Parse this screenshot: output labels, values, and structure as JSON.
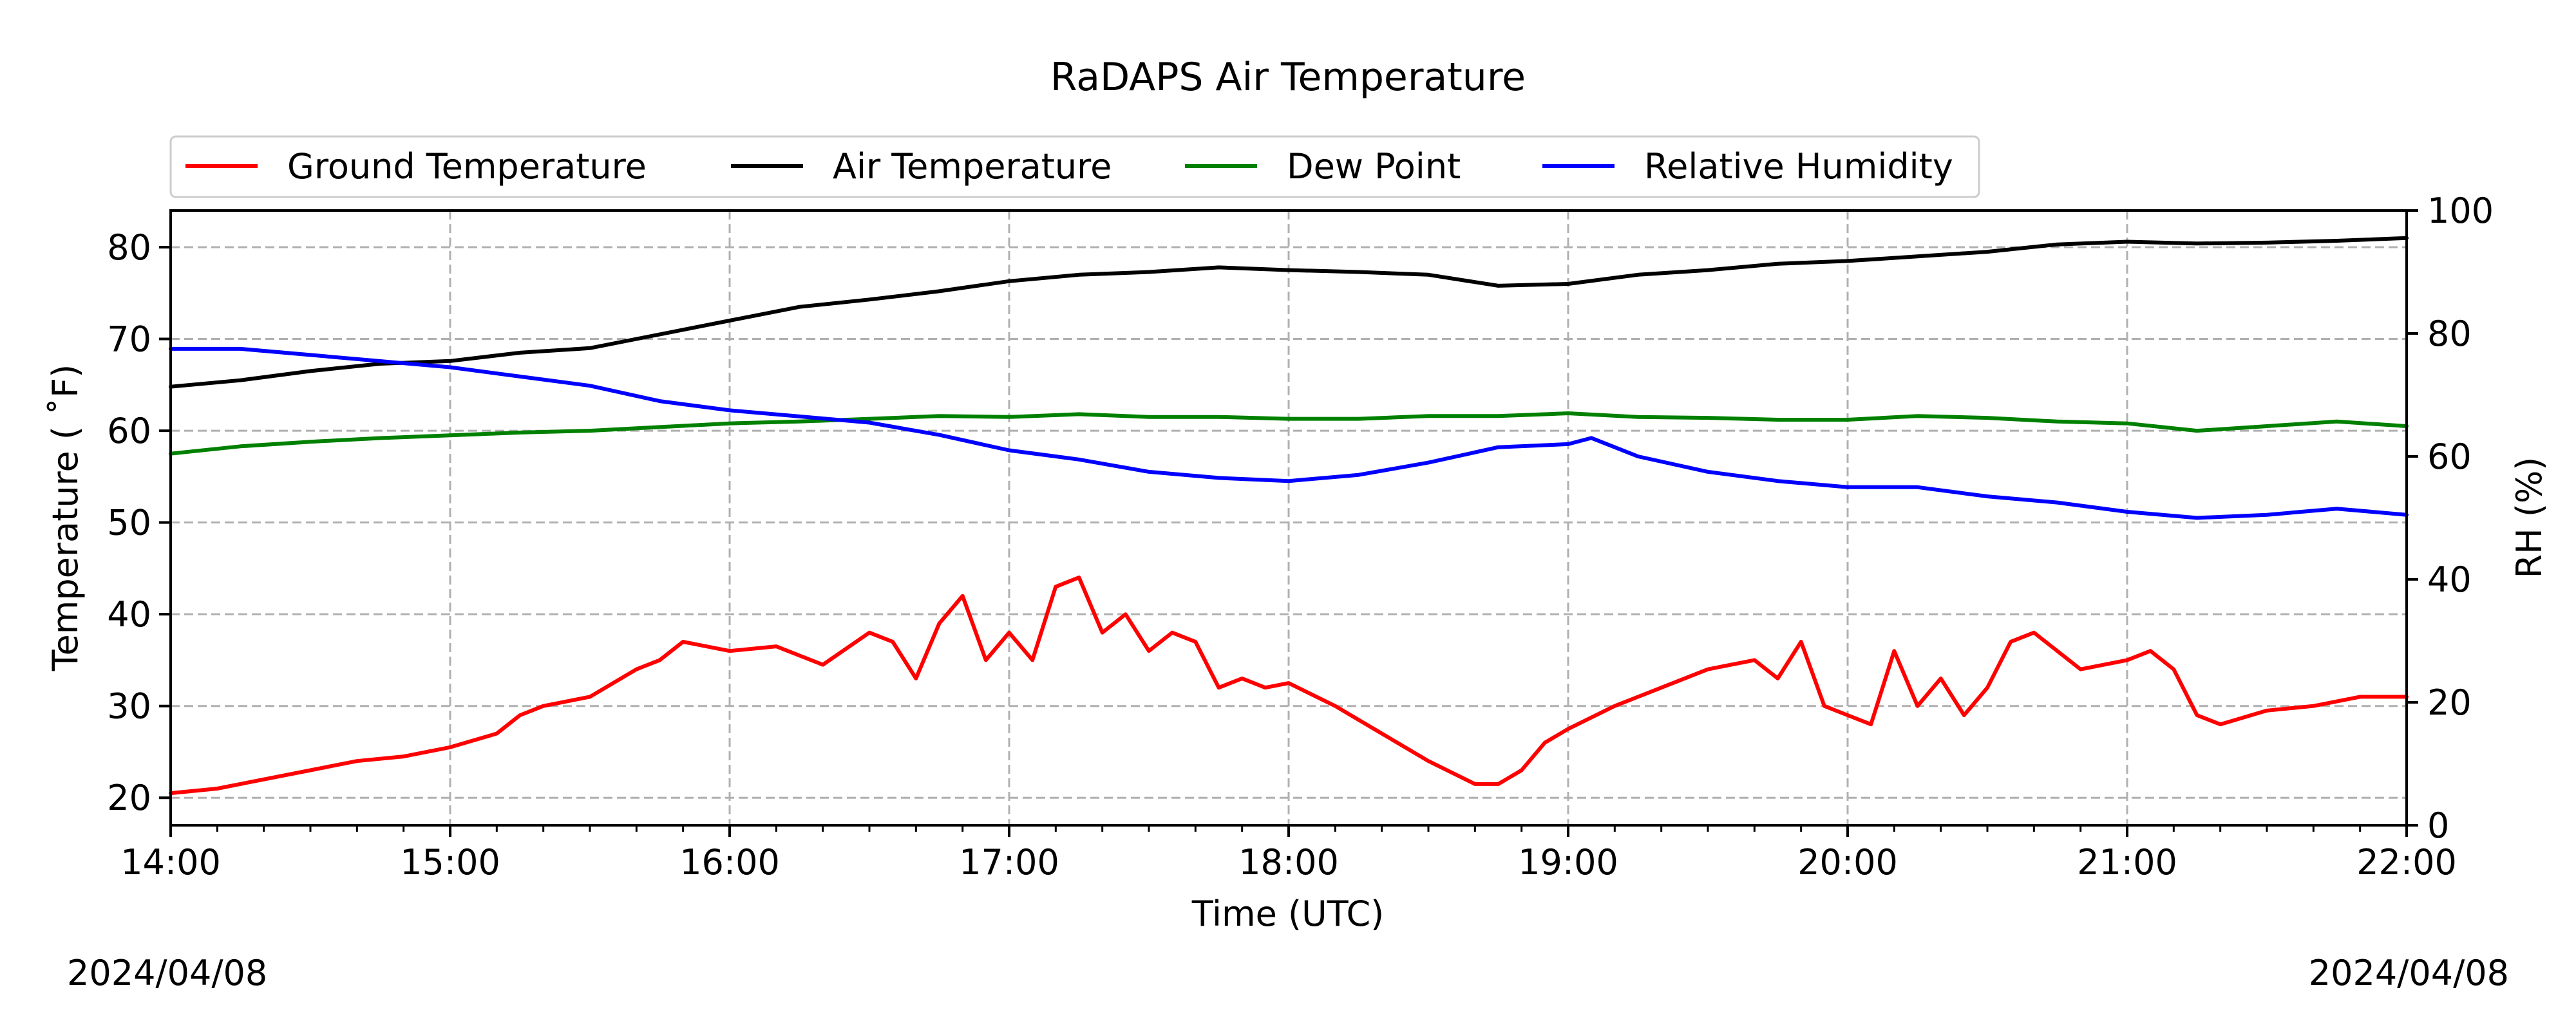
{
  "chart_data": {
    "type": "line",
    "title": "RaDAPS Air Temperature",
    "xlabel": "Time (UTC)",
    "ylabel": "Temperature ($^\\circ$F)",
    "ylabel_left_display": "Temperature ( ˚F)",
    "ylabel_right": "RH (%)",
    "xlim": [
      "14:00",
      "22:00"
    ],
    "ylim": [
      17,
      84
    ],
    "ylim_right": [
      0,
      100
    ],
    "x_ticks": [
      "14:00",
      "15:00",
      "16:00",
      "17:00",
      "18:00",
      "19:00",
      "20:00",
      "21:00",
      "22:00"
    ],
    "y_ticks": [
      20,
      30,
      40,
      50,
      60,
      70,
      80
    ],
    "y_ticks_right": [
      0,
      20,
      40,
      60,
      80,
      100
    ],
    "grid": true,
    "legend_position": "top",
    "date_left": "2024/04/08",
    "date_right": "2024/04/08",
    "series": [
      {
        "name": "Ground Temperature",
        "axis": "left",
        "color": "#ff0000",
        "x": [
          "14:00",
          "14:10",
          "14:20",
          "14:30",
          "14:40",
          "14:50",
          "15:00",
          "15:10",
          "15:15",
          "15:20",
          "15:30",
          "15:40",
          "15:45",
          "15:50",
          "16:00",
          "16:10",
          "16:20",
          "16:30",
          "16:35",
          "16:40",
          "16:45",
          "16:50",
          "16:55",
          "17:00",
          "17:05",
          "17:10",
          "17:15",
          "17:20",
          "17:25",
          "17:30",
          "17:35",
          "17:40",
          "17:45",
          "17:50",
          "17:55",
          "18:00",
          "18:10",
          "18:20",
          "18:30",
          "18:40",
          "18:45",
          "18:50",
          "18:55",
          "19:00",
          "19:10",
          "19:20",
          "19:30",
          "19:40",
          "19:45",
          "19:50",
          "19:55",
          "20:00",
          "20:05",
          "20:10",
          "20:15",
          "20:20",
          "20:25",
          "20:30",
          "20:35",
          "20:40",
          "20:45",
          "20:50",
          "21:00",
          "21:05",
          "21:10",
          "21:15",
          "21:20",
          "21:30",
          "21:40",
          "21:50",
          "22:00"
        ],
        "values": [
          20.5,
          21,
          22,
          23,
          24,
          24.5,
          25.5,
          27,
          29,
          30,
          31,
          34,
          35,
          37,
          36,
          36.5,
          34.5,
          38,
          37,
          33,
          39,
          42,
          35,
          38,
          35,
          43,
          44,
          38,
          40,
          36,
          38,
          37,
          32,
          33,
          32,
          32.5,
          30,
          27,
          24,
          21.5,
          21.5,
          23,
          26,
          27.5,
          30,
          32,
          34,
          35,
          33,
          37,
          30,
          29,
          28,
          36,
          30,
          33,
          29,
          32,
          37,
          38,
          36,
          34,
          35,
          36,
          34,
          29,
          28,
          29.5,
          30,
          31,
          31
        ]
      },
      {
        "name": "Air Temperature",
        "axis": "left",
        "color": "#000000",
        "x": [
          "14:00",
          "14:15",
          "14:30",
          "14:45",
          "15:00",
          "15:15",
          "15:30",
          "15:45",
          "16:00",
          "16:15",
          "16:30",
          "16:45",
          "17:00",
          "17:15",
          "17:30",
          "17:45",
          "18:00",
          "18:15",
          "18:30",
          "18:45",
          "19:00",
          "19:15",
          "19:30",
          "19:45",
          "20:00",
          "20:15",
          "20:30",
          "20:45",
          "21:00",
          "21:15",
          "21:30",
          "21:45",
          "22:00"
        ],
        "values": [
          64.8,
          65.5,
          66.5,
          67.3,
          67.6,
          68.5,
          69,
          70.5,
          72,
          73.5,
          74.3,
          75.2,
          76.3,
          77,
          77.3,
          77.8,
          77.5,
          77.3,
          77,
          75.8,
          76,
          77,
          77.5,
          78.2,
          78.5,
          79,
          79.5,
          80.3,
          80.6,
          80.4,
          80.5,
          80.7,
          81
        ]
      },
      {
        "name": "Dew Point",
        "axis": "left",
        "color": "#008000",
        "x": [
          "14:00",
          "14:15",
          "14:30",
          "14:45",
          "15:00",
          "15:15",
          "15:30",
          "15:45",
          "16:00",
          "16:15",
          "16:30",
          "16:45",
          "17:00",
          "17:15",
          "17:30",
          "17:45",
          "18:00",
          "18:15",
          "18:30",
          "18:45",
          "19:00",
          "19:15",
          "19:30",
          "19:45",
          "20:00",
          "20:15",
          "20:30",
          "20:45",
          "21:00",
          "21:15",
          "21:30",
          "21:45",
          "22:00"
        ],
        "values": [
          57.5,
          58.3,
          58.8,
          59.2,
          59.5,
          59.8,
          60,
          60.4,
          60.8,
          61,
          61.3,
          61.6,
          61.5,
          61.8,
          61.5,
          61.5,
          61.3,
          61.3,
          61.6,
          61.6,
          61.9,
          61.5,
          61.4,
          61.2,
          61.2,
          61.6,
          61.4,
          61,
          60.8,
          60,
          60.5,
          61,
          60.5
        ]
      },
      {
        "name": "Relative Humidity",
        "axis": "right",
        "color": "#0000ff",
        "x": [
          "14:00",
          "14:15",
          "14:30",
          "14:45",
          "15:00",
          "15:15",
          "15:30",
          "15:45",
          "16:00",
          "16:15",
          "16:30",
          "16:45",
          "17:00",
          "17:15",
          "17:30",
          "17:45",
          "18:00",
          "18:15",
          "18:30",
          "18:45",
          "19:00",
          "19:05",
          "19:15",
          "19:30",
          "19:45",
          "20:00",
          "20:15",
          "20:30",
          "20:45",
          "21:00",
          "21:15",
          "21:30",
          "21:45",
          "22:00"
        ],
        "values": [
          77.5,
          77.5,
          76.5,
          75.5,
          74.5,
          73,
          71.5,
          69,
          67.5,
          66.5,
          65.5,
          63.5,
          61,
          59.5,
          57.5,
          56.5,
          56,
          57,
          59,
          61.5,
          62,
          63,
          60,
          57.5,
          56,
          55,
          55,
          53.5,
          52.5,
          51,
          50,
          50.5,
          51.5,
          50.5
        ]
      }
    ]
  }
}
